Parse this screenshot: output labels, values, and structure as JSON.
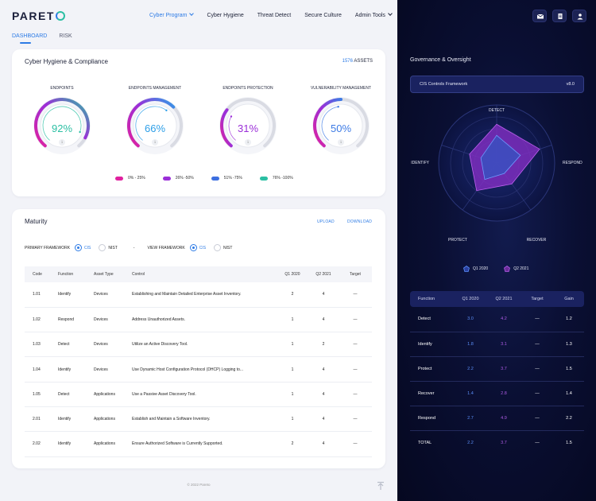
{
  "brand": {
    "name_prefix": "PARET",
    "accent": "#2d7be5",
    "accent2": "#2bbfa3"
  },
  "nav": {
    "items": [
      {
        "label": "Cyber Program",
        "active": true,
        "dropdown": true
      },
      {
        "label": "Cyber Hygiene",
        "active": false
      },
      {
        "label": "Threat Detect",
        "active": false
      },
      {
        "label": "Secure Culture",
        "active": false
      },
      {
        "label": "Admin Tools",
        "active": false,
        "dropdown": true
      }
    ]
  },
  "subtabs": [
    {
      "label": "DASHBOARD",
      "active": true
    },
    {
      "label": "RISK",
      "active": false
    }
  ],
  "hygiene": {
    "title": "Cyber Hygiene & Compliance",
    "assets_count": "1576",
    "assets_label": "ASSETS",
    "gauges": [
      {
        "label": "ENDPOINTS",
        "value": 92,
        "display": "92%",
        "color": "#2bbfa3"
      },
      {
        "label": "ENDPOINTS MANAGEMENT",
        "value": 66,
        "display": "66%",
        "color": "#2d9fe8"
      },
      {
        "label": "ENDPOINTS PROTECTION",
        "value": 31,
        "display": "31%",
        "color": "#9b2fd8"
      },
      {
        "label": "VULNERABILITY MANAGEMENT",
        "value": 50,
        "display": "50%",
        "color": "#3d7be5"
      }
    ],
    "legend": [
      {
        "label": "0% - 25%",
        "color": "#e0219f"
      },
      {
        "label": "26% -50%",
        "color": "#9b2fd8"
      },
      {
        "label": "51% -75%",
        "color": "#3d6fe0"
      },
      {
        "label": "76% -100%",
        "color": "#2bbfa3"
      }
    ]
  },
  "maturity": {
    "title": "Maturity",
    "upload_label": "UPLOAD",
    "download_label": "DOWNLOAD",
    "primary_framework_label": "PRIMARY FRAMEWORK",
    "view_framework_label": "VIEW FRAMEWORK",
    "separator": "-",
    "opt_cis": "CIS",
    "opt_nist": "NIST",
    "columns": [
      "Code",
      "Function",
      "Asset Type",
      "Control",
      "Q1 2020",
      "Q2 2021",
      "Target"
    ],
    "rows": [
      [
        "1.01",
        "Identify",
        "Devices",
        "Establishing and Maintain Detailed Enterprise Asset Inventory.",
        "2",
        "4",
        "—"
      ],
      [
        "1.02",
        "Respond",
        "Devices",
        "Address Unauthorized Assets.",
        "1",
        "4",
        "—"
      ],
      [
        "1.03",
        "Detect",
        "Devices",
        "Utilize an Active Discovery Tool.",
        "1",
        "2",
        "—"
      ],
      [
        "1.04",
        "Identify",
        "Devices",
        "Use Dynamic Host Configuration Protocol (DHCP) Logging to...",
        "1",
        "4",
        "—"
      ],
      [
        "1.05",
        "Detect",
        "Applications",
        "Use a Passive Asset Discovery Tool.",
        "1",
        "4",
        "—"
      ],
      [
        "2.01",
        "Identify",
        "Applications",
        "Establish and Maintain a Software Inventory.",
        "1",
        "4",
        "—"
      ],
      [
        "2.02",
        "Identify",
        "Applications",
        "Ensure Authorized Software is Currently Supported.",
        "2",
        "4",
        "—"
      ]
    ]
  },
  "footer": "© 2022 Pareto",
  "governance": {
    "title": "Governance & Oversight",
    "framework_name": "CIS Controls Framework",
    "framework_version": "v8.0",
    "radar_axes": [
      "DETECT",
      "RESPOND",
      "RECOVER",
      "PROTECT",
      "IDENTIFY"
    ],
    "legend": [
      {
        "label": "Q1 2020",
        "color": "#5b8ff9"
      },
      {
        "label": "Q2 2021",
        "color": "#b05ce6"
      }
    ],
    "columns": [
      "Function",
      "Q1 2020",
      "Q2 2021",
      "Target",
      "Gain"
    ],
    "rows": [
      [
        "Detect",
        "3.0",
        "4.2",
        "—",
        "1.2"
      ],
      [
        "Identify",
        "1.8",
        "3.1",
        "—",
        "1.3"
      ],
      [
        "Protect",
        "2.2",
        "3.7",
        "—",
        "1.5"
      ],
      [
        "Recover",
        "1.4",
        "2.8",
        "—",
        "1.4"
      ],
      [
        "Respond",
        "2.7",
        "4.9",
        "—",
        "2.2"
      ],
      [
        "TOTAL",
        "2.2",
        "3.7",
        "—",
        "1.5"
      ]
    ]
  },
  "icons": [
    "mail-icon",
    "document-icon",
    "user-icon",
    "info-icon",
    "scroll-top-icon"
  ]
}
